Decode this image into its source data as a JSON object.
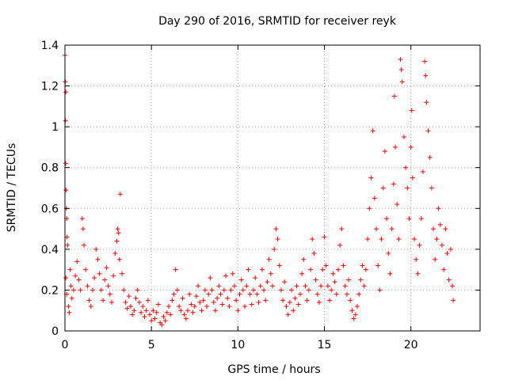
{
  "chart_data": {
    "type": "scatter",
    "title": "Day 290 of 2016, SRMTID for receiver reyk",
    "xlabel": "GPS time / hours",
    "ylabel": "SRMTID / TECUs",
    "xlim": [
      0,
      24
    ],
    "ylim": [
      0,
      1.4
    ],
    "x_ticks": [
      0,
      5,
      10,
      15,
      20
    ],
    "y_ticks": [
      0,
      0.2,
      0.4,
      0.6,
      0.8,
      1,
      1.2,
      1.4
    ],
    "x_tick_labels": [
      "0",
      "5",
      "10",
      "15",
      "20"
    ],
    "y_tick_labels": [
      "0",
      "0.2",
      "0.4",
      "0.6",
      "0.8",
      "1",
      "1.2",
      "1.4"
    ],
    "grid": true,
    "marker": "+",
    "series": [
      {
        "name": "SRMTID",
        "color": "#ff0000",
        "points": [
          [
            0.0,
            1.35
          ],
          [
            0.02,
            1.22
          ],
          [
            0.05,
            1.17
          ],
          [
            0.03,
            1.03
          ],
          [
            0.04,
            0.82
          ],
          [
            0.06,
            0.69
          ],
          [
            0.08,
            0.6
          ],
          [
            0.1,
            0.55
          ],
          [
            0.12,
            0.46
          ],
          [
            0.15,
            0.42
          ],
          [
            0.05,
            0.26
          ],
          [
            0.1,
            0.18
          ],
          [
            0.2,
            0.12
          ],
          [
            0.25,
            0.09
          ],
          [
            0.3,
            0.3
          ],
          [
            0.35,
            0.22
          ],
          [
            0.4,
            0.16
          ],
          [
            0.5,
            0.2
          ],
          [
            0.6,
            0.27
          ],
          [
            0.7,
            0.34
          ],
          [
            0.8,
            0.25
          ],
          [
            0.9,
            0.2
          ],
          [
            1.0,
            0.55
          ],
          [
            1.05,
            0.5
          ],
          [
            1.1,
            0.42
          ],
          [
            1.2,
            0.3
          ],
          [
            1.3,
            0.22
          ],
          [
            1.4,
            0.15
          ],
          [
            1.5,
            0.12
          ],
          [
            1.6,
            0.2
          ],
          [
            1.7,
            0.26
          ],
          [
            1.8,
            0.4
          ],
          [
            1.9,
            0.35
          ],
          [
            2.0,
            0.28
          ],
          [
            2.1,
            0.2
          ],
          [
            2.2,
            0.15
          ],
          [
            2.3,
            0.25
          ],
          [
            2.4,
            0.31
          ],
          [
            2.5,
            0.22
          ],
          [
            2.6,
            0.18
          ],
          [
            2.7,
            0.14
          ],
          [
            2.8,
            0.27
          ],
          [
            2.9,
            0.38
          ],
          [
            3.0,
            0.44
          ],
          [
            3.05,
            0.5
          ],
          [
            3.1,
            0.48
          ],
          [
            3.15,
            0.35
          ],
          [
            3.2,
            0.67
          ],
          [
            3.3,
            0.28
          ],
          [
            3.4,
            0.2
          ],
          [
            3.5,
            0.14
          ],
          [
            3.6,
            0.11
          ],
          [
            3.7,
            0.17
          ],
          [
            3.8,
            0.12
          ],
          [
            3.9,
            0.08
          ],
          [
            4.0,
            0.1
          ],
          [
            4.1,
            0.16
          ],
          [
            4.2,
            0.2
          ],
          [
            4.3,
            0.14
          ],
          [
            4.4,
            0.09
          ],
          [
            4.5,
            0.12
          ],
          [
            4.6,
            0.07
          ],
          [
            4.7,
            0.1
          ],
          [
            4.8,
            0.15
          ],
          [
            4.9,
            0.08
          ],
          [
            5.0,
            0.05
          ],
          [
            5.1,
            0.1
          ],
          [
            5.2,
            0.06
          ],
          [
            5.3,
            0.09
          ],
          [
            5.4,
            0.13
          ],
          [
            5.5,
            0.04
          ],
          [
            5.6,
            0.03
          ],
          [
            5.7,
            0.07
          ],
          [
            5.8,
            0.05
          ],
          [
            5.9,
            0.09
          ],
          [
            6.0,
            0.12
          ],
          [
            6.1,
            0.08
          ],
          [
            6.2,
            0.15
          ],
          [
            6.3,
            0.18
          ],
          [
            6.4,
            0.3
          ],
          [
            6.5,
            0.2
          ],
          [
            6.6,
            0.12
          ],
          [
            6.7,
            0.1
          ],
          [
            6.8,
            0.16
          ],
          [
            6.9,
            0.08
          ],
          [
            7.0,
            0.06
          ],
          [
            7.1,
            0.1
          ],
          [
            7.2,
            0.18
          ],
          [
            7.3,
            0.13
          ],
          [
            7.4,
            0.09
          ],
          [
            7.5,
            0.12
          ],
          [
            7.6,
            0.17
          ],
          [
            7.7,
            0.22
          ],
          [
            7.8,
            0.14
          ],
          [
            7.9,
            0.1
          ],
          [
            8.0,
            0.15
          ],
          [
            8.1,
            0.2
          ],
          [
            8.2,
            0.12
          ],
          [
            8.3,
            0.18
          ],
          [
            8.4,
            0.26
          ],
          [
            8.5,
            0.2
          ],
          [
            8.6,
            0.14
          ],
          [
            8.7,
            0.1
          ],
          [
            8.8,
            0.16
          ],
          [
            8.9,
            0.22
          ],
          [
            9.0,
            0.18
          ],
          [
            9.1,
            0.13
          ],
          [
            9.2,
            0.2
          ],
          [
            9.3,
            0.27
          ],
          [
            9.4,
            0.16
          ],
          [
            9.5,
            0.12
          ],
          [
            9.6,
            0.2
          ],
          [
            9.7,
            0.28
          ],
          [
            9.8,
            0.22
          ],
          [
            9.9,
            0.15
          ],
          [
            10.0,
            0.1
          ],
          [
            10.1,
            0.18
          ],
          [
            10.2,
            0.25
          ],
          [
            10.3,
            0.2
          ],
          [
            10.4,
            0.12
          ],
          [
            10.5,
            0.22
          ],
          [
            10.6,
            0.3
          ],
          [
            10.7,
            0.18
          ],
          [
            10.8,
            0.13
          ],
          [
            10.9,
            0.2
          ],
          [
            11.0,
            0.26
          ],
          [
            11.1,
            0.18
          ],
          [
            11.2,
            0.14
          ],
          [
            11.3,
            0.22
          ],
          [
            11.4,
            0.3
          ],
          [
            11.5,
            0.2
          ],
          [
            11.6,
            0.15
          ],
          [
            11.7,
            0.24
          ],
          [
            11.8,
            0.35
          ],
          [
            11.9,
            0.28
          ],
          [
            12.0,
            0.22
          ],
          [
            12.1,
            0.4
          ],
          [
            12.2,
            0.5
          ],
          [
            12.3,
            0.45
          ],
          [
            12.4,
            0.32
          ],
          [
            12.5,
            0.2
          ],
          [
            12.6,
            0.15
          ],
          [
            12.7,
            0.24
          ],
          [
            12.8,
            0.12
          ],
          [
            12.9,
            0.08
          ],
          [
            13.0,
            0.14
          ],
          [
            13.1,
            0.2
          ],
          [
            13.2,
            0.1
          ],
          [
            13.3,
            0.16
          ],
          [
            13.4,
            0.22
          ],
          [
            13.5,
            0.13
          ],
          [
            13.6,
            0.18
          ],
          [
            13.7,
            0.28
          ],
          [
            13.8,
            0.35
          ],
          [
            13.9,
            0.22
          ],
          [
            14.0,
            0.15
          ],
          [
            14.1,
            0.2
          ],
          [
            14.2,
            0.3
          ],
          [
            14.3,
            0.45
          ],
          [
            14.4,
            0.38
          ],
          [
            14.5,
            0.25
          ],
          [
            14.6,
            0.18
          ],
          [
            14.7,
            0.14
          ],
          [
            14.8,
            0.22
          ],
          [
            14.9,
            0.3
          ],
          [
            15.0,
            0.46
          ],
          [
            15.1,
            0.32
          ],
          [
            15.2,
            0.22
          ],
          [
            15.3,
            0.15
          ],
          [
            15.4,
            0.2
          ],
          [
            15.5,
            0.28
          ],
          [
            15.6,
            0.24
          ],
          [
            15.7,
            0.18
          ],
          [
            15.8,
            0.3
          ],
          [
            15.9,
            0.42
          ],
          [
            16.0,
            0.5
          ],
          [
            16.1,
            0.32
          ],
          [
            16.2,
            0.22
          ],
          [
            16.3,
            0.18
          ],
          [
            16.4,
            0.25
          ],
          [
            16.5,
            0.15
          ],
          [
            16.6,
            0.1
          ],
          [
            16.7,
            0.06
          ],
          [
            16.8,
            0.08
          ],
          [
            16.9,
            0.12
          ],
          [
            17.0,
            0.18
          ],
          [
            17.1,
            0.25
          ],
          [
            17.2,
            0.32
          ],
          [
            17.3,
            0.22
          ],
          [
            17.4,
            0.3
          ],
          [
            17.5,
            0.45
          ],
          [
            17.6,
            0.6
          ],
          [
            17.7,
            0.75
          ],
          [
            17.8,
            0.98
          ],
          [
            17.9,
            0.65
          ],
          [
            18.0,
            0.5
          ],
          [
            18.1,
            0.32
          ],
          [
            18.2,
            0.2
          ],
          [
            18.3,
            0.45
          ],
          [
            18.4,
            0.7
          ],
          [
            18.5,
            0.88
          ],
          [
            18.6,
            0.55
          ],
          [
            18.7,
            0.38
          ],
          [
            18.8,
            0.28
          ],
          [
            18.9,
            0.5
          ],
          [
            19.0,
            0.72
          ],
          [
            19.05,
            1.15
          ],
          [
            19.1,
            0.9
          ],
          [
            19.2,
            0.62
          ],
          [
            19.3,
            0.45
          ],
          [
            19.4,
            1.33
          ],
          [
            19.45,
            1.28
          ],
          [
            19.5,
            1.22
          ],
          [
            19.6,
            0.95
          ],
          [
            19.7,
            0.8
          ],
          [
            19.8,
            0.7
          ],
          [
            19.9,
            0.55
          ],
          [
            20.0,
            0.9
          ],
          [
            20.05,
            1.08
          ],
          [
            20.1,
            0.75
          ],
          [
            20.2,
            0.45
          ],
          [
            20.3,
            0.35
          ],
          [
            20.4,
            0.28
          ],
          [
            20.5,
            0.42
          ],
          [
            20.6,
            0.55
          ],
          [
            20.7,
            0.78
          ],
          [
            20.8,
            1.32
          ],
          [
            20.85,
            1.25
          ],
          [
            20.9,
            1.12
          ],
          [
            21.0,
            0.98
          ],
          [
            21.1,
            0.85
          ],
          [
            21.2,
            0.7
          ],
          [
            21.3,
            0.5
          ],
          [
            21.4,
            0.35
          ],
          [
            21.5,
            0.45
          ],
          [
            21.6,
            0.6
          ],
          [
            21.7,
            0.52
          ],
          [
            21.8,
            0.42
          ],
          [
            21.9,
            0.3
          ],
          [
            22.0,
            0.5
          ],
          [
            22.1,
            0.38
          ],
          [
            22.2,
            0.25
          ],
          [
            22.3,
            0.4
          ],
          [
            22.4,
            0.22
          ],
          [
            22.45,
            0.15
          ]
        ]
      }
    ]
  }
}
